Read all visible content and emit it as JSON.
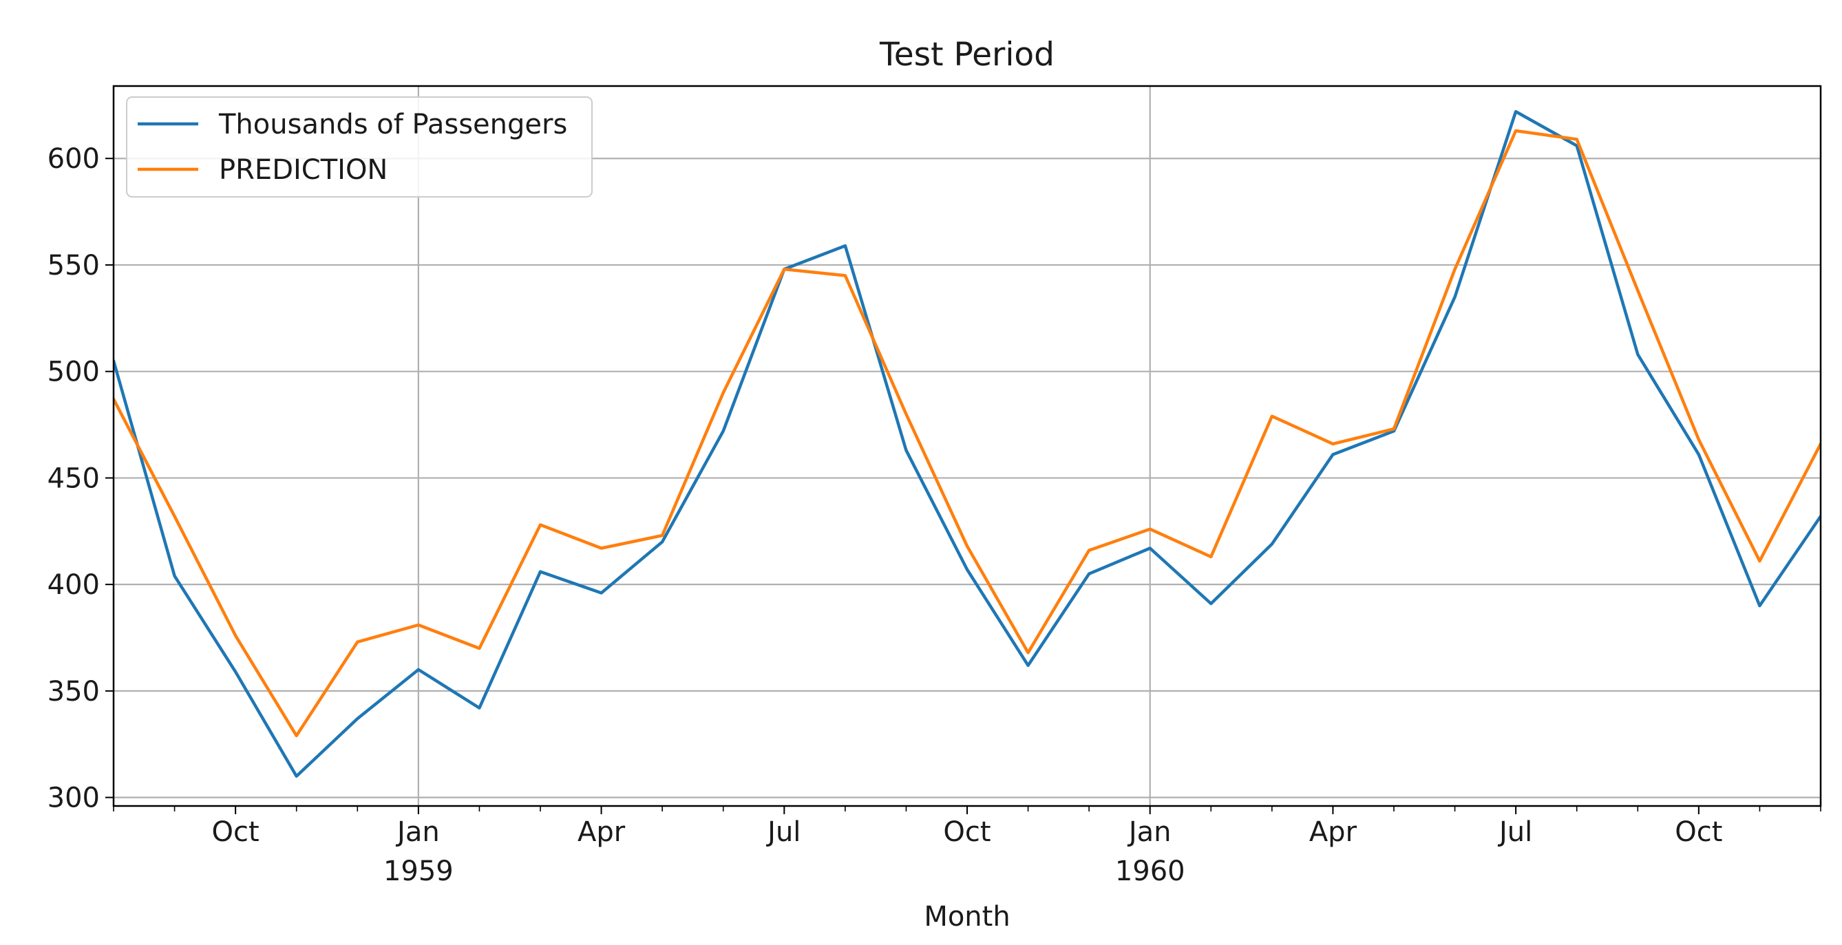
{
  "chart_data": {
    "type": "line",
    "title": "Test Period",
    "xlabel": "Month",
    "ylabel": "",
    "x": [
      "1958-08",
      "1958-09",
      "1958-10",
      "1958-11",
      "1958-12",
      "1959-01",
      "1959-02",
      "1959-03",
      "1959-04",
      "1959-05",
      "1959-06",
      "1959-07",
      "1959-08",
      "1959-09",
      "1959-10",
      "1959-11",
      "1959-12",
      "1960-01",
      "1960-02",
      "1960-03",
      "1960-04",
      "1960-05",
      "1960-06",
      "1960-07",
      "1960-08",
      "1960-09",
      "1960-10",
      "1960-11",
      "1960-12"
    ],
    "xlim": [
      "1958-08",
      "1960-12"
    ],
    "ylim": [
      296,
      634
    ],
    "y_ticks": [
      300,
      350,
      400,
      450,
      500,
      550,
      600
    ],
    "x_ticks": [
      {
        "date": "1958-10",
        "label": "Oct",
        "year": ""
      },
      {
        "date": "1959-01",
        "label": "Jan",
        "year": "1959"
      },
      {
        "date": "1959-04",
        "label": "Apr",
        "year": ""
      },
      {
        "date": "1959-07",
        "label": "Jul",
        "year": ""
      },
      {
        "date": "1959-10",
        "label": "Oct",
        "year": ""
      },
      {
        "date": "1960-01",
        "label": "Jan",
        "year": "1960"
      },
      {
        "date": "1960-04",
        "label": "Apr",
        "year": ""
      },
      {
        "date": "1960-07",
        "label": "Jul",
        "year": ""
      },
      {
        "date": "1960-10",
        "label": "Oct",
        "year": ""
      }
    ],
    "grid": true,
    "legend_position": "top-left",
    "series": [
      {
        "name": "Thousands of Passengers",
        "color": "#1f77b4",
        "values": [
          505,
          404,
          359,
          310,
          337,
          360,
          342,
          406,
          396,
          420,
          472,
          548,
          559,
          463,
          407,
          362,
          405,
          417,
          391,
          419,
          461,
          472,
          535,
          622,
          606,
          508,
          461,
          390,
          432
        ]
      },
      {
        "name": "PREDICTION",
        "color": "#ff7f0e",
        "values": [
          487,
          432,
          376,
          329,
          373,
          381,
          370,
          428,
          417,
          423,
          490,
          548,
          545,
          480,
          418,
          368,
          416,
          426,
          413,
          479,
          466,
          473,
          548,
          613,
          609,
          538,
          468,
          411,
          466
        ]
      }
    ]
  }
}
